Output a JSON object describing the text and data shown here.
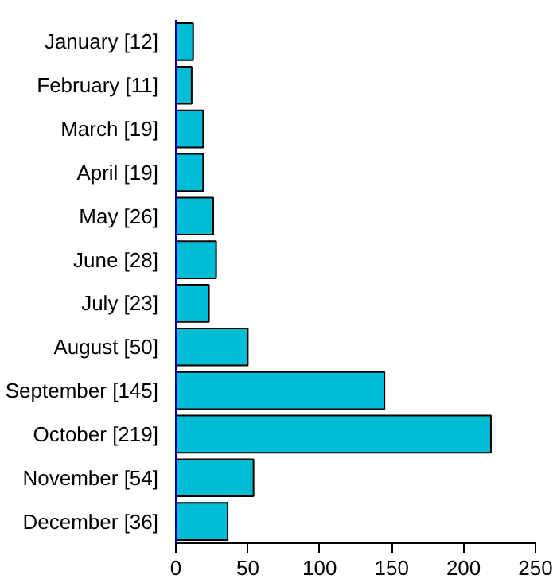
{
  "chart_data": {
    "type": "bar",
    "orientation": "horizontal",
    "categories": [
      "January [12]",
      "February [11]",
      "March [19]",
      "April [19]",
      "May [26]",
      "June [28]",
      "July [23]",
      "August [50]",
      "September [145]",
      "October [219]",
      "November [54]",
      "December [36]"
    ],
    "values": [
      12,
      11,
      19,
      19,
      26,
      28,
      23,
      50,
      145,
      219,
      54,
      36
    ],
    "color": "#00bcd4",
    "xlim": [
      0,
      250
    ],
    "xticks": [
      0,
      50,
      100,
      150,
      200,
      250
    ],
    "grid": false
  }
}
